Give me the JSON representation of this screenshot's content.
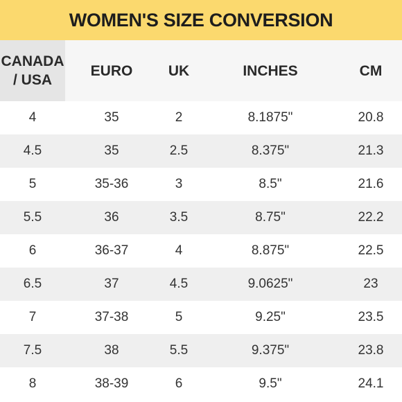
{
  "title": "WOMEN'S SIZE CONVERSION",
  "colors": {
    "banner": "#fbd96e",
    "header_bg": "#f6f6f6",
    "stripe": "#efefef"
  },
  "headers": {
    "canada_usa_line1": "CANADA",
    "canada_usa_line2": "/ USA",
    "euro": "EURO",
    "uk": "UK",
    "inches": "INCHES",
    "cm": "CM"
  },
  "rows": [
    {
      "canada_usa": "4",
      "euro": "35",
      "uk": "2",
      "inches": "8.1875\"",
      "cm": "20.8"
    },
    {
      "canada_usa": "4.5",
      "euro": "35",
      "uk": "2.5",
      "inches": "8.375\"",
      "cm": "21.3"
    },
    {
      "canada_usa": "5",
      "euro": "35-36",
      "uk": "3",
      "inches": "8.5\"",
      "cm": "21.6"
    },
    {
      "canada_usa": "5.5",
      "euro": "36",
      "uk": "3.5",
      "inches": "8.75\"",
      "cm": "22.2"
    },
    {
      "canada_usa": "6",
      "euro": "36-37",
      "uk": "4",
      "inches": "8.875\"",
      "cm": "22.5"
    },
    {
      "canada_usa": "6.5",
      "euro": "37",
      "uk": "4.5",
      "inches": "9.0625\"",
      "cm": "23"
    },
    {
      "canada_usa": "7",
      "euro": "37-38",
      "uk": "5",
      "inches": "9.25\"",
      "cm": "23.5"
    },
    {
      "canada_usa": "7.5",
      "euro": "38",
      "uk": "5.5",
      "inches": "9.375\"",
      "cm": "23.8"
    },
    {
      "canada_usa": "8",
      "euro": "38-39",
      "uk": "6",
      "inches": "9.5\"",
      "cm": "24.1"
    }
  ]
}
